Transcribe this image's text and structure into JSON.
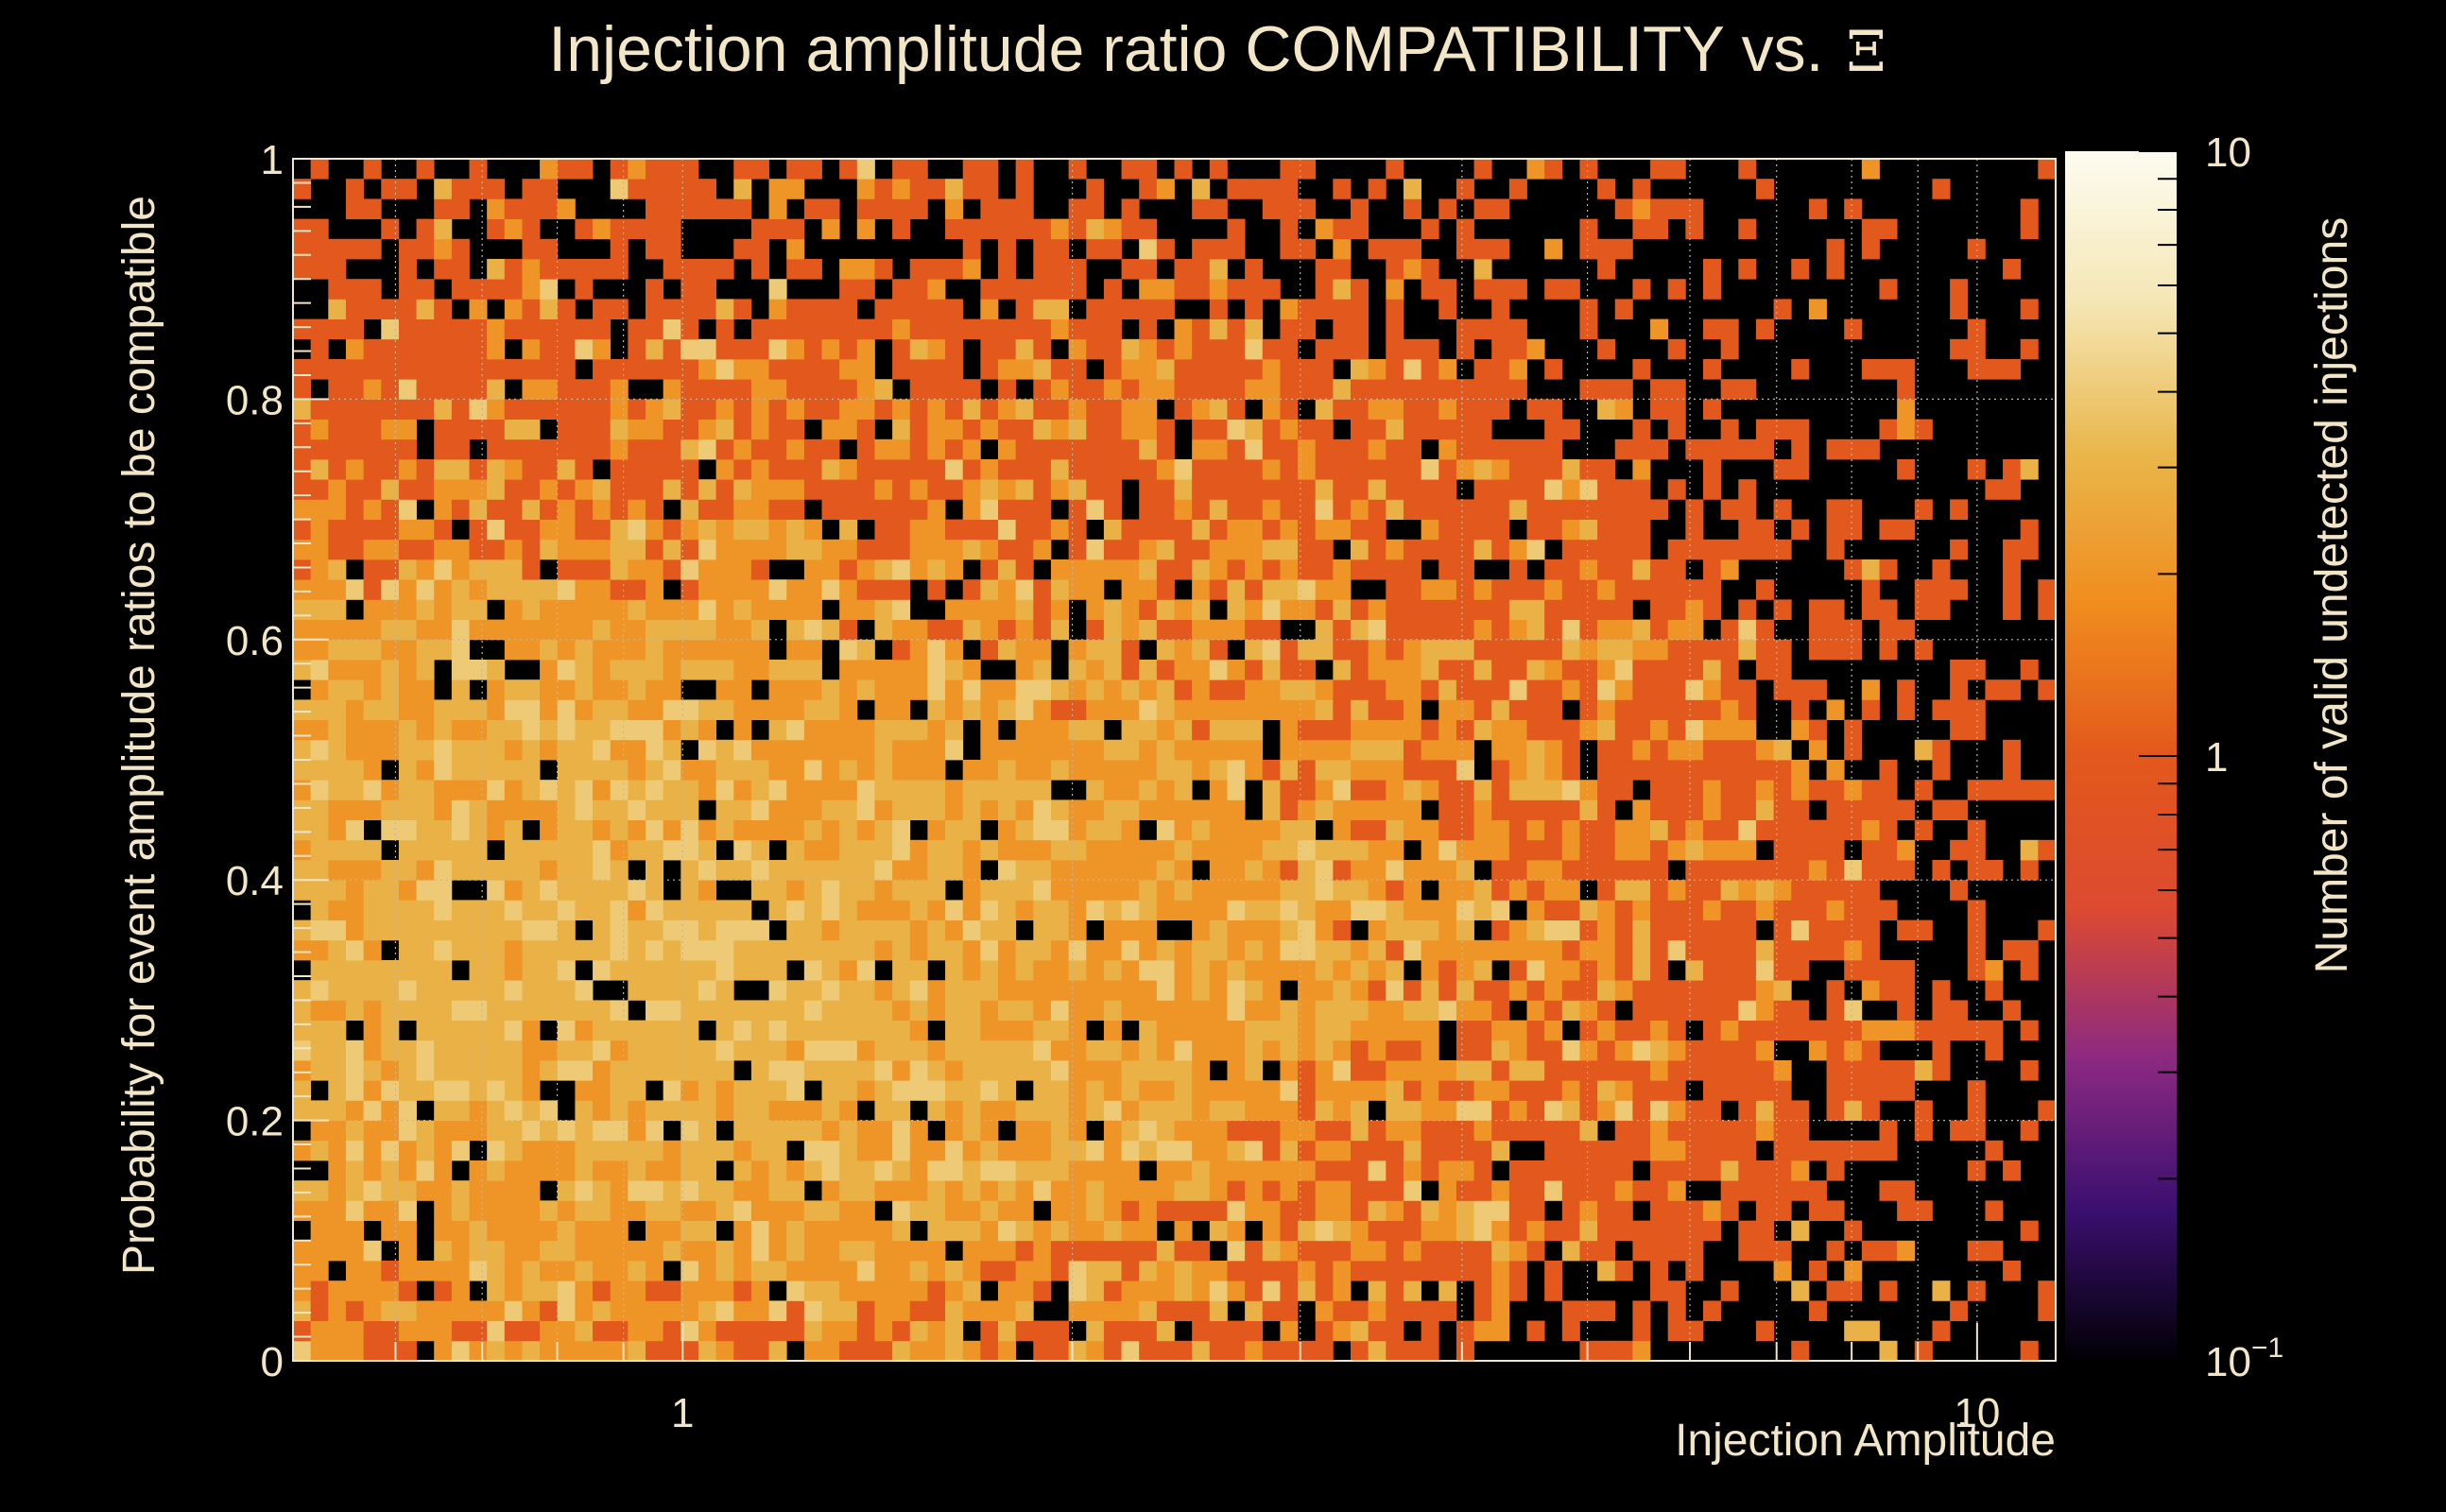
{
  "chart_data": {
    "type": "heatmap",
    "title": "Injection amplitude ratio COMPATIBILITY vs.",
    "title_symbol": "Ξ",
    "xlabel": "Injection Amplitude",
    "ylabel": "Probability for event amplitude ratios to be compatible",
    "zlabel": "Number of valid undetected injections",
    "x_scale": "log",
    "z_scale": "log",
    "xlim": [
      0.5,
      11.5
    ],
    "ylim": [
      0,
      1
    ],
    "zlim": [
      0.1,
      10
    ],
    "x_ticks": [
      {
        "value": 1,
        "label": "1"
      },
      {
        "value": 10,
        "label": "10"
      }
    ],
    "y_ticks": [
      {
        "value": 0,
        "label": "0"
      },
      {
        "value": 0.2,
        "label": "0.2"
      },
      {
        "value": 0.4,
        "label": "0.4"
      },
      {
        "value": 0.6,
        "label": "0.6"
      },
      {
        "value": 0.8,
        "label": "0.8"
      },
      {
        "value": 1,
        "label": "1"
      }
    ],
    "z_ticks": [
      {
        "value": 0.1,
        "label": "10",
        "exponent": "−1"
      },
      {
        "value": 1,
        "label": "1",
        "exponent": ""
      },
      {
        "value": 10,
        "label": "10",
        "exponent": ""
      }
    ],
    "grid": true,
    "colormap": [
      "#000004",
      "#3b0f70",
      "#8c2981",
      "#dd4a30",
      "#e3581c",
      "#f08c1e",
      "#e9b64a",
      "#f5e6b5",
      "#fcfcf0"
    ],
    "background": "#000000",
    "cells": [
      {
        "x": 0.55,
        "y": 0.31,
        "z": 3
      },
      {
        "x": 0.6,
        "y": 0.27,
        "z": 4
      },
      {
        "x": 0.62,
        "y": 0.38,
        "z": 3
      },
      {
        "x": 0.7,
        "y": 0.29,
        "z": 4
      },
      {
        "x": 0.75,
        "y": 0.33,
        "z": 3
      },
      {
        "x": 0.8,
        "y": 0.26,
        "z": 4
      },
      {
        "x": 0.85,
        "y": 0.4,
        "z": 3
      },
      {
        "x": 0.9,
        "y": 0.3,
        "z": 4
      },
      {
        "x": 1.2,
        "y": 0.35,
        "z": 3
      },
      {
        "x": 1.4,
        "y": 0.28,
        "z": 3
      },
      {
        "x": 1.6,
        "y": 0.25,
        "z": 4
      },
      {
        "x": 1.8,
        "y": 0.32,
        "z": 3
      },
      {
        "x": 0.58,
        "y": 0.52,
        "z": 2
      },
      {
        "x": 0.65,
        "y": 0.58,
        "z": 2
      },
      {
        "x": 1.1,
        "y": 0.62,
        "z": 2
      },
      {
        "x": 2.5,
        "y": 0.3,
        "z": 2
      },
      {
        "x": 3.2,
        "y": 0.35,
        "z": 2
      },
      {
        "x": 3.8,
        "y": 0.62,
        "z": 2
      },
      {
        "x": 4.5,
        "y": 0.33,
        "z": 2
      },
      {
        "x": 2.3,
        "y": 0.7,
        "z": 2
      }
    ]
  }
}
